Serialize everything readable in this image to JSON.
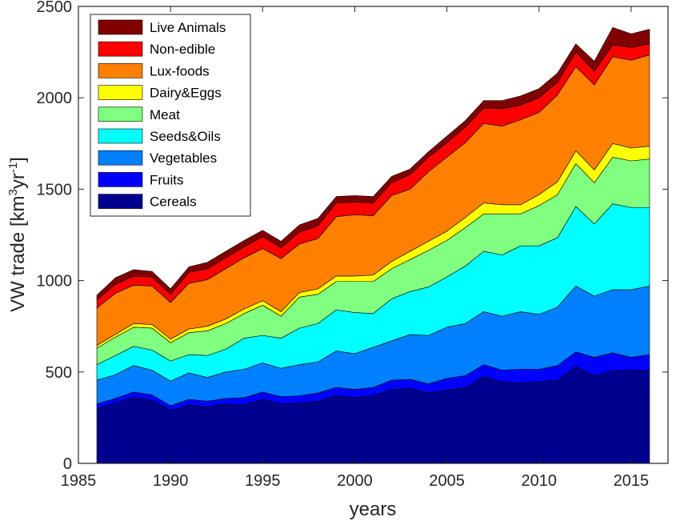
{
  "chart_data": {
    "type": "area",
    "stacked": true,
    "xlabel": "years",
    "ylabel": "VW trade [km³yr⁻¹]",
    "ylabel_parts": {
      "main": "VW trade [km",
      "sup1": "3",
      "mid": "yr",
      "sup2": "-1",
      "end": "]"
    },
    "xlim": [
      1985,
      2017
    ],
    "ylim": [
      0,
      2500
    ],
    "xticks": [
      1985,
      1990,
      1995,
      2000,
      2005,
      2010,
      2015
    ],
    "yticks": [
      0,
      500,
      1000,
      1500,
      2000,
      2500
    ],
    "grid": false,
    "legend_position": "top-left",
    "x": [
      1986,
      1987,
      1988,
      1989,
      1990,
      1991,
      1992,
      1993,
      1994,
      1995,
      1996,
      1997,
      1998,
      1999,
      2000,
      2001,
      2002,
      2003,
      2004,
      2005,
      2006,
      2007,
      2008,
      2009,
      2010,
      2011,
      2012,
      2013,
      2014,
      2015,
      2016
    ],
    "series": [
      {
        "name": "Cereals",
        "color": "#00008F",
        "values": [
          300,
          330,
          360,
          345,
          290,
          320,
          310,
          325,
          320,
          350,
          325,
          330,
          340,
          370,
          360,
          370,
          405,
          410,
          385,
          400,
          415,
          475,
          445,
          440,
          445,
          455,
          530,
          480,
          505,
          510,
          505
        ]
      },
      {
        "name": "Fruits",
        "color": "#0000FF",
        "values": [
          25,
          25,
          30,
          30,
          25,
          30,
          30,
          30,
          40,
          40,
          40,
          40,
          45,
          45,
          45,
          45,
          50,
          50,
          50,
          65,
          65,
          65,
          65,
          75,
          70,
          80,
          80,
          100,
          100,
          70,
          90
        ]
      },
      {
        "name": "Vegetables",
        "color": "#0080FF",
        "values": [
          130,
          130,
          145,
          135,
          135,
          145,
          130,
          145,
          155,
          160,
          155,
          170,
          170,
          200,
          195,
          220,
          215,
          245,
          265,
          280,
          285,
          290,
          295,
          315,
          300,
          320,
          360,
          335,
          345,
          370,
          375
        ]
      },
      {
        "name": "Seeds&Oils",
        "color": "#00FFFF",
        "values": [
          85,
          105,
          105,
          110,
          110,
          100,
          120,
          125,
          170,
          150,
          165,
          200,
          210,
          225,
          225,
          185,
          230,
          235,
          265,
          275,
          315,
          330,
          335,
          360,
          375,
          380,
          435,
          395,
          470,
          450,
          430
        ]
      },
      {
        "name": "Meat",
        "color": "#80FF80",
        "values": [
          90,
          100,
          105,
          120,
          100,
          120,
          135,
          140,
          135,
          165,
          120,
          170,
          160,
          155,
          170,
          175,
          165,
          175,
          200,
          200,
          210,
          205,
          225,
          175,
          220,
          235,
          235,
          225,
          255,
          255,
          265
        ]
      },
      {
        "name": "Dairy&Eggs",
        "color": "#FFFF00",
        "values": [
          15,
          15,
          20,
          20,
          20,
          20,
          25,
          25,
          25,
          25,
          25,
          25,
          30,
          30,
          30,
          35,
          40,
          45,
          50,
          50,
          55,
          60,
          50,
          50,
          60,
          70,
          70,
          70,
          75,
          70,
          70
        ]
      },
      {
        "name": "Lux-foods",
        "color": "#FF8000",
        "values": [
          205,
          225,
          210,
          210,
          200,
          250,
          255,
          275,
          280,
          285,
          290,
          265,
          275,
          325,
          335,
          325,
          360,
          340,
          380,
          405,
          410,
          435,
          430,
          465,
          450,
          475,
          460,
          465,
          475,
          480,
          500
        ]
      },
      {
        "name": "Non-edible",
        "color": "#FF0000",
        "values": [
          45,
          50,
          50,
          50,
          45,
          60,
          60,
          60,
          60,
          65,
          60,
          65,
          70,
          75,
          70,
          70,
          70,
          80,
          80,
          80,
          85,
          85,
          95,
          80,
          80,
          70,
          80,
          75,
          65,
          70,
          60
        ]
      },
      {
        "name": "Live Animals",
        "color": "#800000",
        "values": [
          25,
          35,
          35,
          30,
          30,
          30,
          35,
          35,
          35,
          35,
          35,
          40,
          40,
          35,
          35,
          35,
          35,
          30,
          30,
          35,
          35,
          40,
          45,
          50,
          50,
          50,
          45,
          55,
          95,
          75,
          80
        ]
      }
    ]
  }
}
